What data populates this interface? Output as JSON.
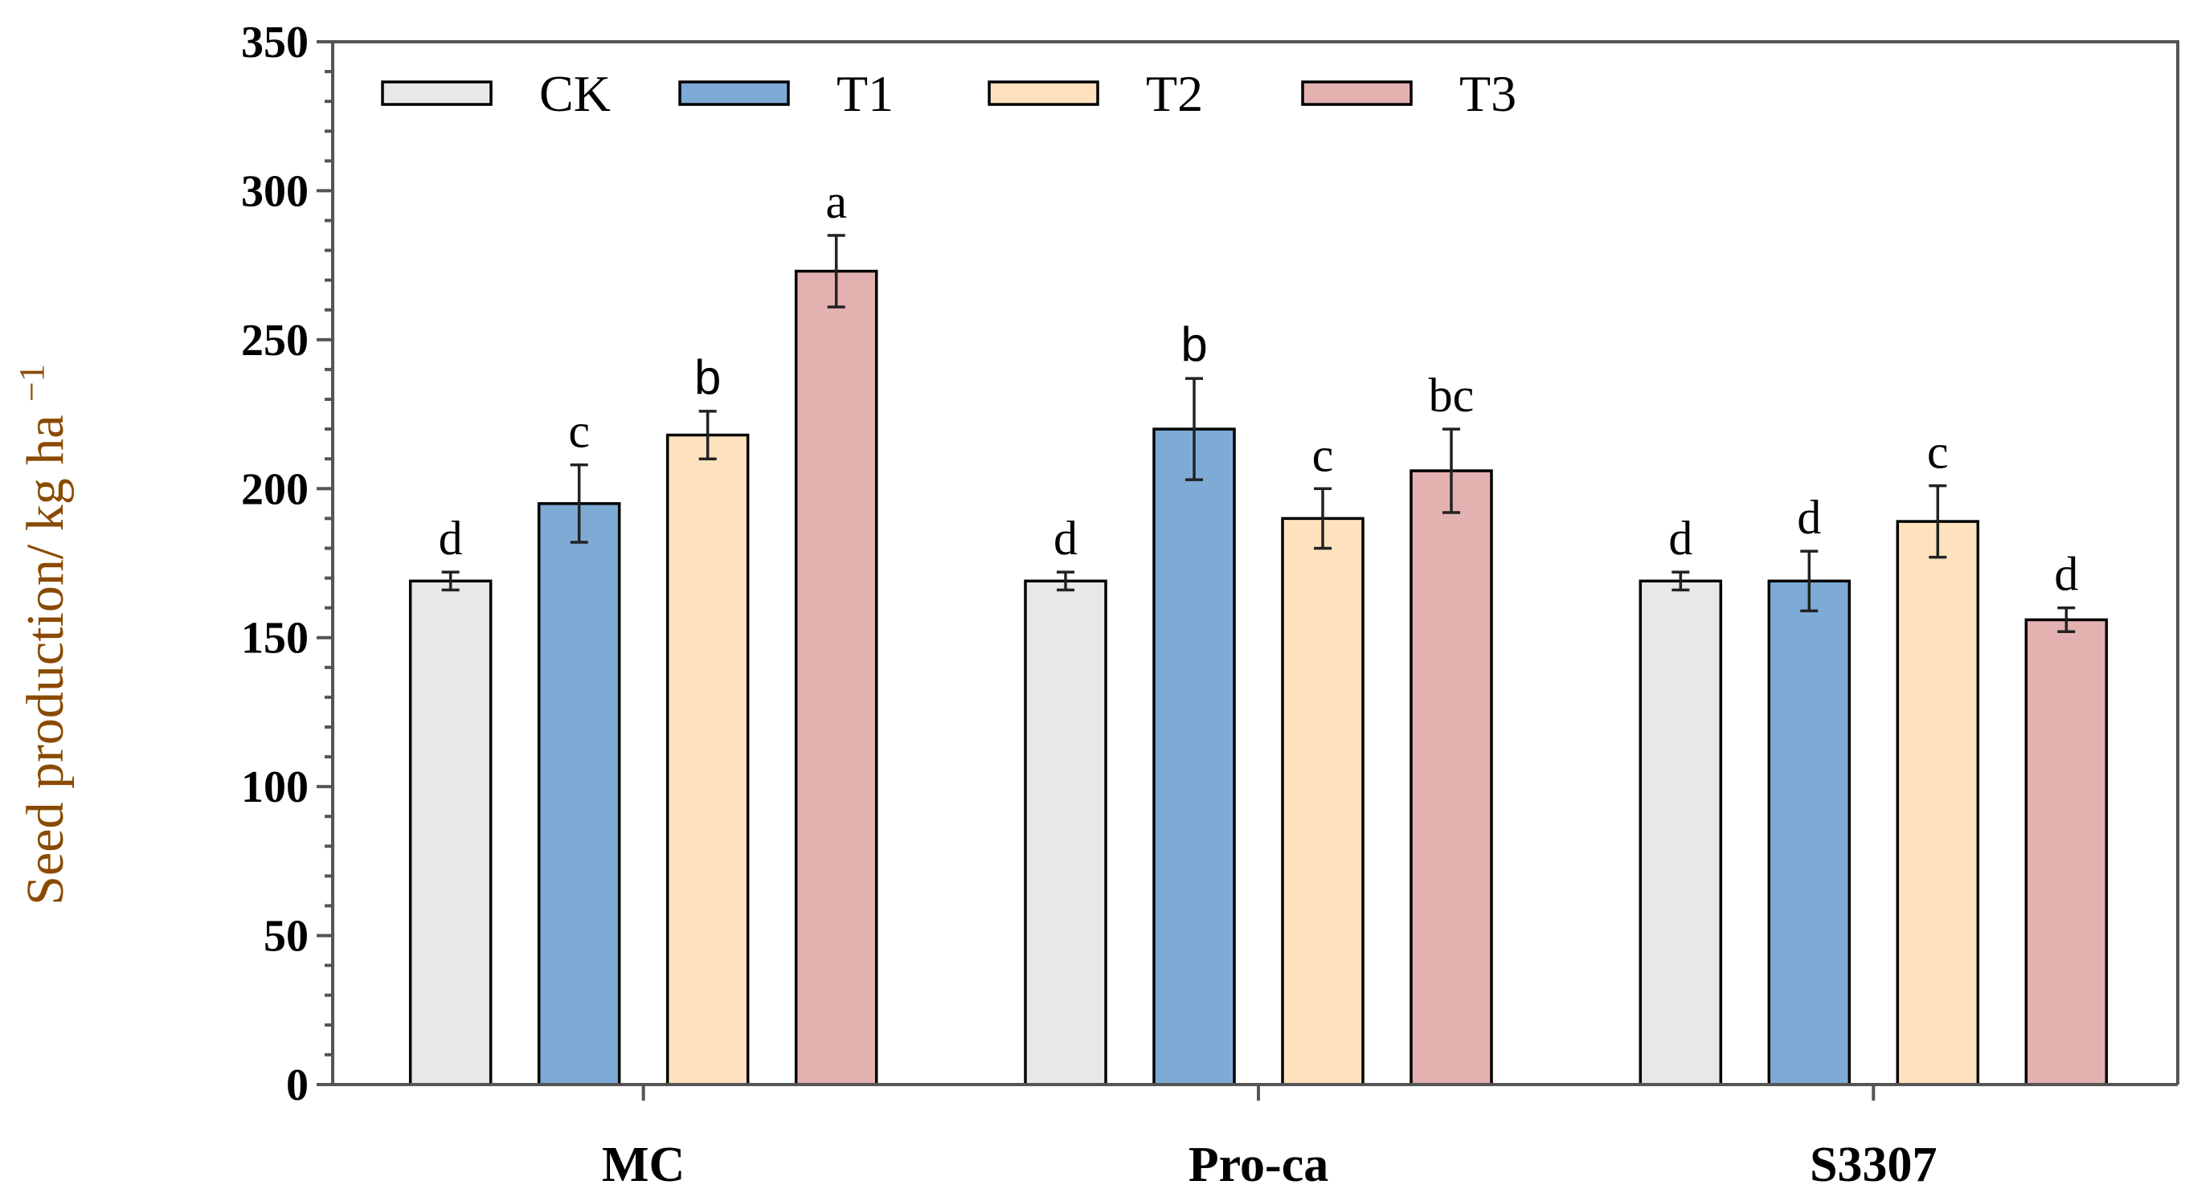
{
  "chart_data": {
    "type": "bar",
    "title": "",
    "xlabel": "",
    "ylabel": "Seed production/ kg ha",
    "ylabel_superscript": "−1",
    "ylim": [
      0,
      350
    ],
    "yticks": [
      "0",
      "50",
      "100",
      "150",
      "200",
      "250",
      "300",
      "350"
    ],
    "categories": [
      "MC",
      "Pro-ca",
      "S3307"
    ],
    "legend_position": "top-left",
    "series": [
      {
        "name": "CK",
        "color": "#e8e8e8",
        "values": [
          169,
          169,
          169
        ],
        "errors": [
          3,
          3,
          3
        ],
        "sig": [
          "d",
          "d",
          "d"
        ]
      },
      {
        "name": "T1",
        "color": "#7dabd6",
        "values": [
          195,
          220,
          169
        ],
        "errors": [
          13,
          17,
          10
        ],
        "sig": [
          "c",
          "b",
          "d"
        ]
      },
      {
        "name": "T2",
        "color": "#fde2bd",
        "values": [
          218,
          190,
          189
        ],
        "errors": [
          8,
          10,
          12
        ],
        "sig": [
          "b",
          "c",
          "c"
        ]
      },
      {
        "name": "T3",
        "color": "#e4b1b1",
        "values": [
          273,
          206,
          156
        ],
        "errors": [
          12,
          14,
          4
        ],
        "sig": [
          "a",
          "bc",
          "d"
        ]
      }
    ]
  }
}
